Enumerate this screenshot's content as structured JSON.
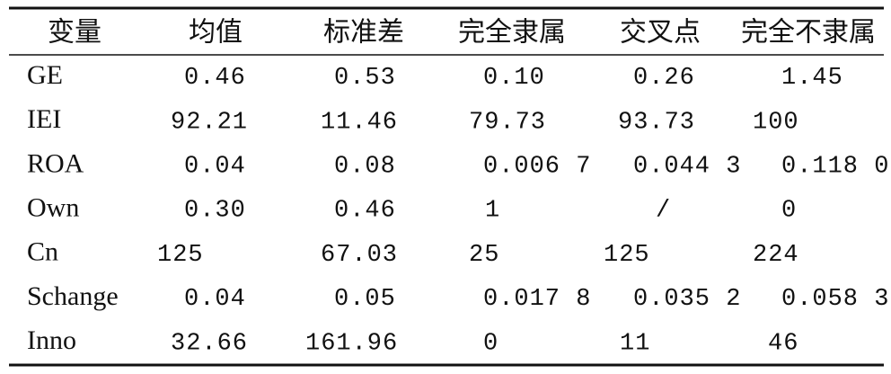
{
  "table": {
    "header": [
      "变量",
      "均值",
      "标准差",
      "完全隶属",
      "交叉点",
      "完全不隶属"
    ],
    "rows": [
      [
        "GE",
        "0.46",
        "0.53",
        "0.10",
        "0.26",
        "1.45"
      ],
      [
        "IEI",
        "92.21",
        "11.46",
        "79.73",
        "93.73",
        "100"
      ],
      [
        "ROA",
        "0.04",
        "0.08",
        "0.006 7",
        "0.044 3",
        "0.118 0"
      ],
      [
        "Own",
        "0.30",
        "0.46",
        "1",
        "/",
        "0"
      ],
      [
        "Cn",
        "125",
        "67.03",
        "25",
        "125",
        "224"
      ],
      [
        "Schange",
        "0.04",
        "0.05",
        "0.017 8",
        "0.035 2",
        "0.058 3"
      ],
      [
        "Inno",
        "32.66",
        "161.96",
        "0",
        "11",
        "46"
      ]
    ]
  }
}
